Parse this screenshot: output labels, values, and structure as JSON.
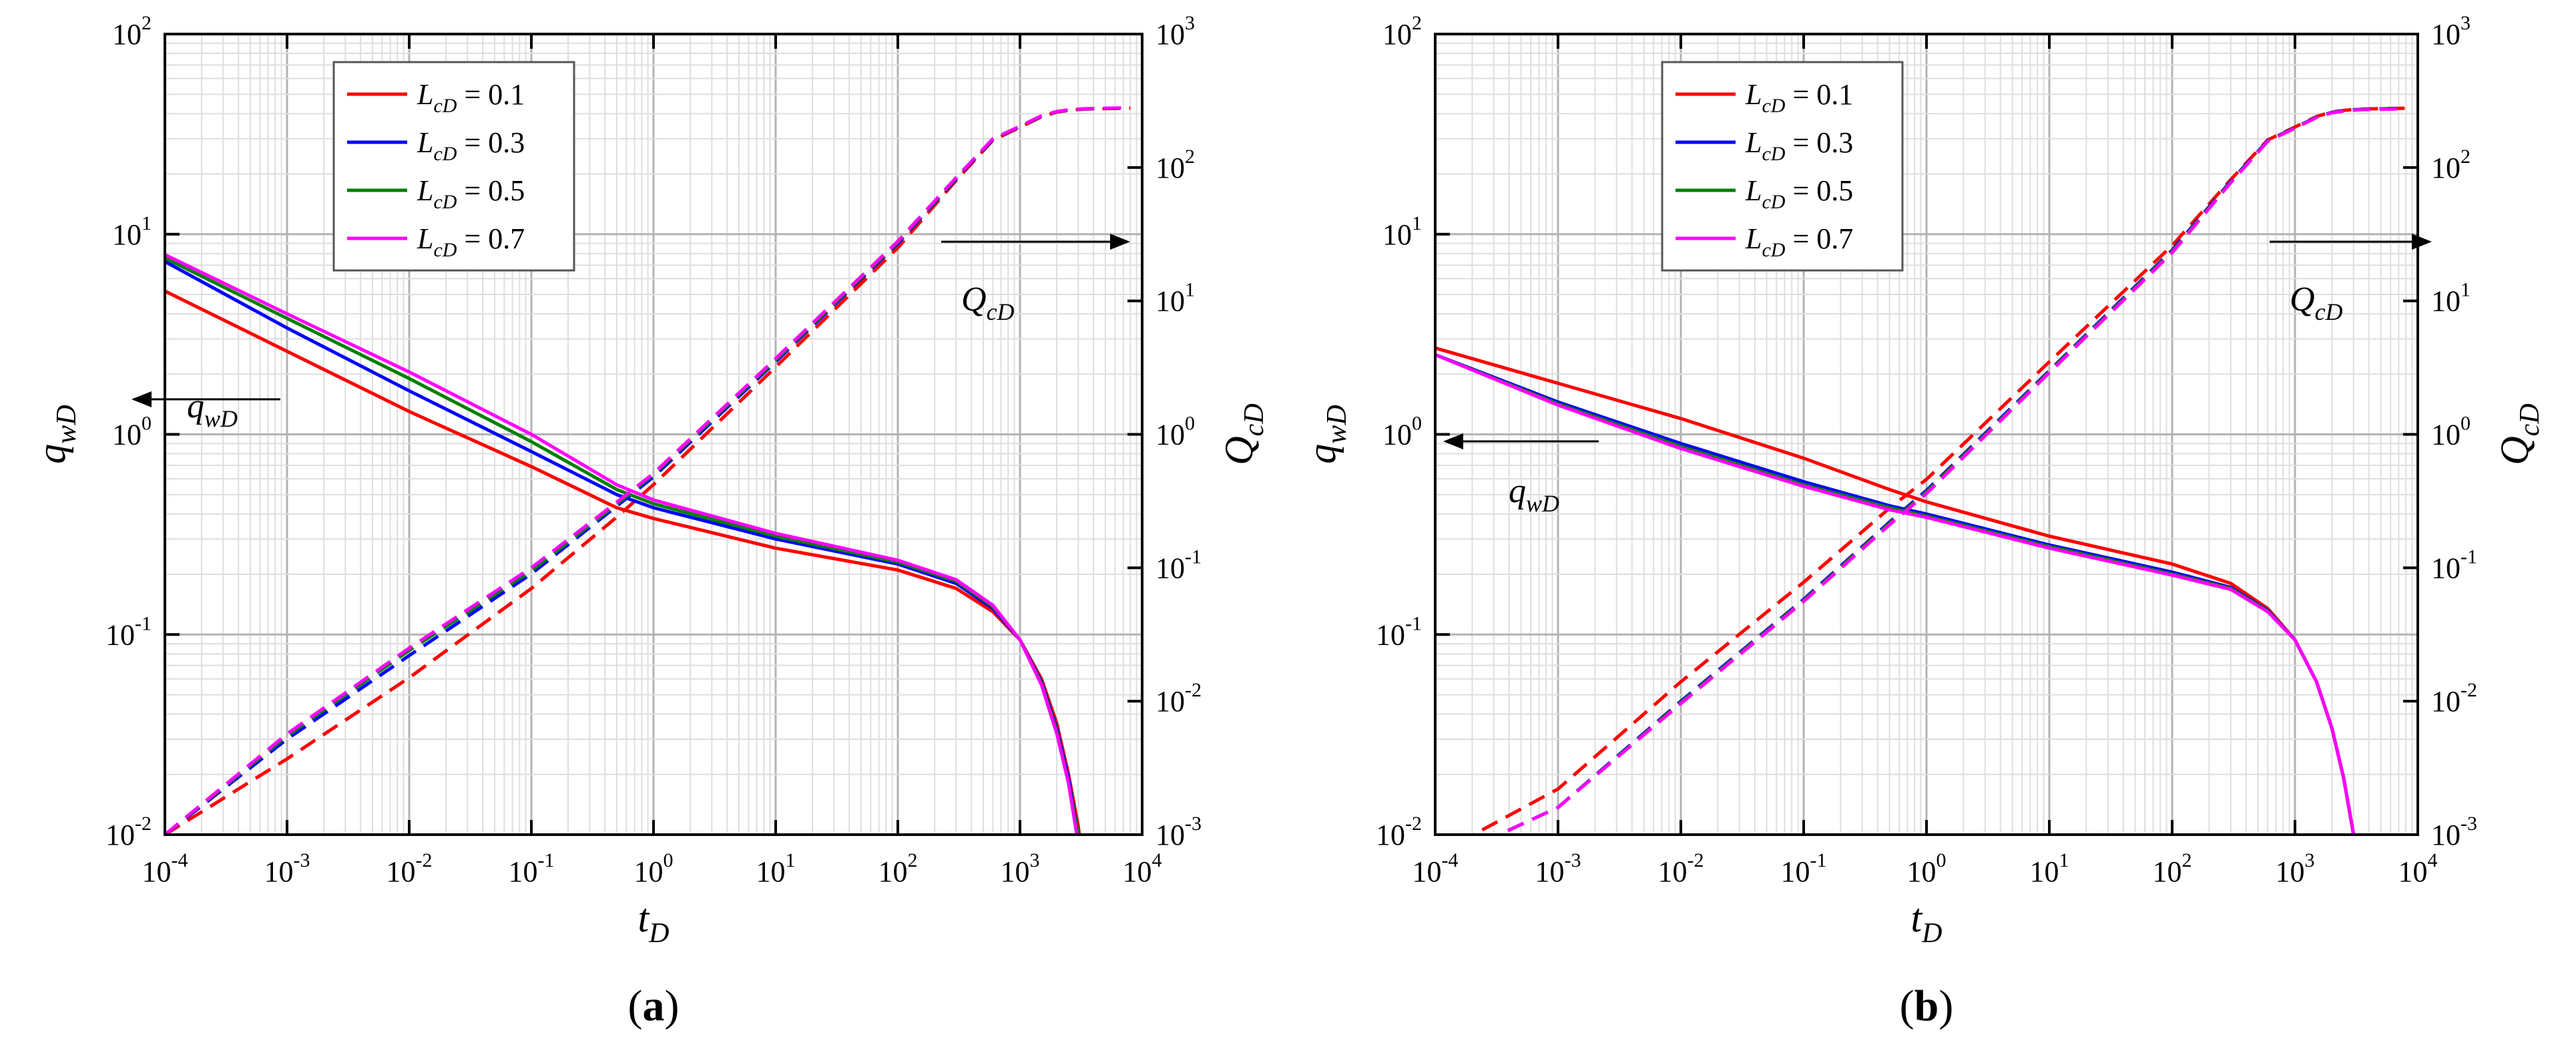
{
  "chart_data": [
    {
      "type": "line",
      "panel_label": "a",
      "xlabel": {
        "base": "t",
        "sub": "D"
      },
      "ylabel_left": {
        "base": "q",
        "sub": "wD"
      },
      "ylabel_right": {
        "base": "Q",
        "sub": "cD"
      },
      "x_scale": "log",
      "y_left_scale": "log",
      "y_right_scale": "log",
      "xlim": [
        0.0001,
        10000
      ],
      "ylim_left": [
        0.01,
        100
      ],
      "ylim_right": [
        0.001,
        1000
      ],
      "x_ticks": [
        -4,
        -3,
        -2,
        -1,
        0,
        1,
        2,
        3,
        4
      ],
      "y_left_ticks": [
        -2,
        -1,
        0,
        1,
        2
      ],
      "y_right_ticks": [
        -3,
        -2,
        -1,
        0,
        1,
        2,
        3
      ],
      "grid": true,
      "legend_position": "top-left",
      "legend_var": {
        "base": "L",
        "sub": "cD"
      },
      "annotations": [
        {
          "base": "q",
          "sub": "wD",
          "arrow": "left",
          "axis": "left"
        },
        {
          "base": "Q",
          "sub": "cD",
          "arrow": "right",
          "axis": "right"
        }
      ],
      "x": [
        0.0001,
        0.001,
        0.01,
        0.1,
        0.5,
        1,
        10,
        100,
        300,
        600,
        1000,
        1500,
        2000,
        2500,
        3000,
        3500,
        5000,
        8000
      ],
      "series": [
        {
          "name": "0.1",
          "color": "#ff0000",
          "qwD": [
            5.2,
            2.6,
            1.3,
            0.69,
            0.43,
            0.38,
            0.27,
            0.21,
            0.17,
            0.13,
            0.094,
            0.06,
            0.036,
            0.02,
            0.011,
            0.005,
            null,
            null
          ],
          "QcD": [
            0.001,
            0.0037,
            0.015,
            0.07,
            0.24,
            0.42,
            3.2,
            25,
            80,
            160,
            200,
            240,
            260,
            268,
            272,
            274,
            276,
            278
          ]
        },
        {
          "name": "0.3",
          "color": "#0000ff",
          "qwD": [
            7.3,
            3.4,
            1.65,
            0.82,
            0.5,
            0.43,
            0.3,
            0.225,
            0.18,
            0.135,
            0.094,
            0.058,
            0.034,
            0.019,
            0.01,
            0.005,
            null,
            null
          ],
          "QcD": [
            0.001,
            0.0052,
            0.022,
            0.09,
            0.29,
            0.48,
            3.5,
            27,
            82,
            162,
            202,
            242,
            262,
            269,
            273,
            275,
            277,
            279
          ]
        },
        {
          "name": "0.5",
          "color": "#008000",
          "qwD": [
            7.6,
            3.8,
            1.9,
            0.92,
            0.53,
            0.45,
            0.31,
            0.23,
            0.185,
            0.138,
            0.094,
            0.057,
            0.033,
            0.018,
            0.01,
            0.005,
            null,
            null
          ],
          "QcD": [
            0.001,
            0.0055,
            0.024,
            0.095,
            0.3,
            0.5,
            3.6,
            27.5,
            83,
            163,
            203,
            243,
            262,
            269,
            273,
            275,
            277,
            279
          ]
        },
        {
          "name": "0.7",
          "color": "#ff00ff",
          "qwD": [
            7.9,
            4.0,
            2.05,
            1.0,
            0.56,
            0.47,
            0.32,
            0.235,
            0.188,
            0.14,
            0.094,
            0.056,
            0.032,
            0.018,
            0.009,
            0.005,
            null,
            null
          ],
          "QcD": [
            0.001,
            0.0057,
            0.025,
            0.1,
            0.31,
            0.51,
            3.7,
            28,
            84,
            164,
            204,
            244,
            263,
            270,
            274,
            276,
            278,
            280
          ]
        }
      ]
    },
    {
      "type": "line",
      "panel_label": "b",
      "xlabel": {
        "base": "t",
        "sub": "D"
      },
      "ylabel_left": {
        "base": "q",
        "sub": "wD"
      },
      "ylabel_right": {
        "base": "Q",
        "sub": "cD"
      },
      "x_scale": "log",
      "y_left_scale": "log",
      "y_right_scale": "log",
      "xlim": [
        0.0001,
        10000
      ],
      "ylim_left": [
        0.01,
        100
      ],
      "ylim_right": [
        0.001,
        1000
      ],
      "x_ticks": [
        -4,
        -3,
        -2,
        -1,
        0,
        1,
        2,
        3,
        4
      ],
      "y_left_ticks": [
        -2,
        -1,
        0,
        1,
        2
      ],
      "y_right_ticks": [
        -3,
        -2,
        -1,
        0,
        1,
        2,
        3
      ],
      "grid": true,
      "legend_position": "top-left",
      "legend_var": {
        "base": "L",
        "sub": "cD"
      },
      "annotations": [
        {
          "base": "q",
          "sub": "wD",
          "arrow": "left",
          "axis": "left"
        },
        {
          "base": "Q",
          "sub": "cD",
          "arrow": "right",
          "axis": "right"
        }
      ],
      "x": [
        0.0001,
        0.001,
        0.01,
        0.1,
        0.5,
        1,
        10,
        100,
        300,
        600,
        1000,
        1500,
        2000,
        2500,
        3000,
        3500,
        5000,
        8000
      ],
      "series": [
        {
          "name": "0.1",
          "color": "#ff0000",
          "qwD": [
            2.7,
            1.8,
            1.2,
            0.76,
            0.53,
            0.46,
            0.31,
            0.225,
            0.18,
            0.135,
            0.094,
            0.058,
            0.034,
            0.019,
            0.01,
            0.005,
            null,
            null
          ],
          "QcD": [
            0.0007,
            0.0022,
            0.014,
            0.078,
            0.28,
            0.46,
            3.5,
            26,
            81,
            161,
            201,
            241,
            261,
            268,
            272,
            274,
            276,
            278
          ]
        },
        {
          "name": "0.3",
          "color": "#0000ff",
          "qwD": [
            2.5,
            1.45,
            0.9,
            0.58,
            0.44,
            0.4,
            0.28,
            0.205,
            0.172,
            0.132,
            0.094,
            0.058,
            0.034,
            0.019,
            0.01,
            0.005,
            null,
            null
          ],
          "QcD": [
            0.0006,
            0.0016,
            0.01,
            0.058,
            0.22,
            0.38,
            3.0,
            24,
            79,
            159,
            199,
            239,
            259,
            267,
            271,
            273,
            275,
            277
          ]
        },
        {
          "name": "0.5",
          "color": "#008000",
          "qwD": [
            2.5,
            1.42,
            0.87,
            0.56,
            0.43,
            0.39,
            0.275,
            0.2,
            0.17,
            0.131,
            0.094,
            0.058,
            0.034,
            0.019,
            0.01,
            0.005,
            null,
            null
          ],
          "QcD": [
            0.0006,
            0.0016,
            0.0098,
            0.057,
            0.215,
            0.37,
            2.95,
            23.5,
            78,
            158,
            198,
            238,
            258,
            266,
            270,
            272,
            274,
            276
          ]
        },
        {
          "name": "0.7",
          "color": "#ff00ff",
          "qwD": [
            2.5,
            1.4,
            0.85,
            0.55,
            0.42,
            0.385,
            0.27,
            0.198,
            0.168,
            0.13,
            0.094,
            0.058,
            0.034,
            0.019,
            0.01,
            0.005,
            null,
            null
          ],
          "QcD": [
            0.0006,
            0.0016,
            0.0096,
            0.056,
            0.21,
            0.36,
            2.9,
            23,
            77,
            157,
            197,
            237,
            257,
            265,
            269,
            271,
            273,
            275
          ]
        }
      ]
    }
  ]
}
